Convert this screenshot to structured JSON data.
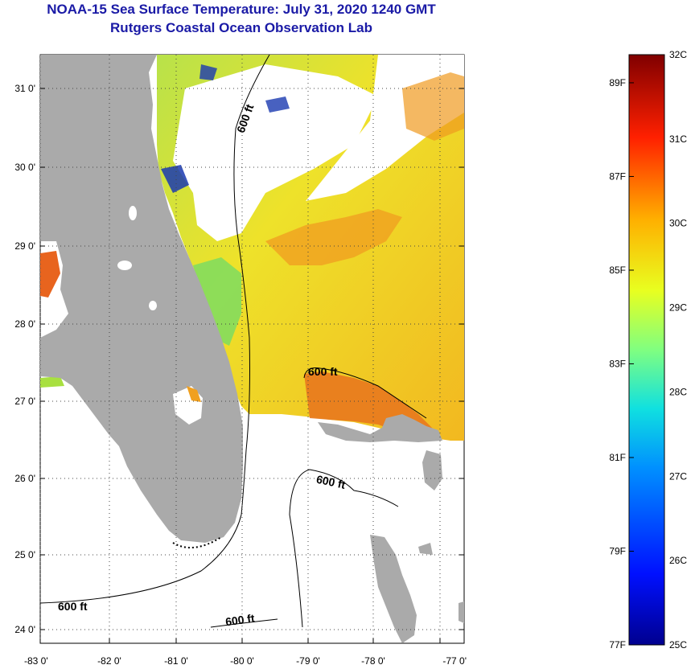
{
  "header": {
    "title": "NOAA-15 Sea Surface Temperature:  July 31, 2020 1240 GMT",
    "subtitle": "Rutgers Coastal Ocean Observation Lab"
  },
  "axes": {
    "lat_ticks": [
      "31 0'",
      "30 0'",
      "29 0'",
      "28 0'",
      "27 0'",
      "26 0'",
      "25 0'",
      "24 0'"
    ],
    "lon_ticks": [
      "-83 0'",
      "-82 0'",
      "-81 0'",
      "-80 0'",
      "-79 0'",
      "-78 0'",
      "-77 0'"
    ]
  },
  "contours": {
    "depth_label": "600 ft"
  },
  "colorbar": {
    "celsius": [
      "32C",
      "31C",
      "30C",
      "29C",
      "28C",
      "27C",
      "26C",
      "25C"
    ],
    "fahrenheit": [
      "89F",
      "87F",
      "85F",
      "83F",
      "81F",
      "79F",
      "77F"
    ]
  },
  "colors": {
    "land": "#aaaaaa",
    "title": "#1a1aa6",
    "warm": "#e8641e",
    "mid": "#f2d21e",
    "cool": "#a8e040"
  }
}
